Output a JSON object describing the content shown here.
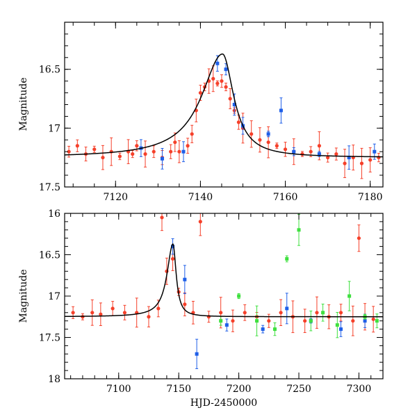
{
  "colors": {
    "red": "#f5402a",
    "blue": "#1f5fe8",
    "green": "#3fe03f",
    "model": "#000000"
  },
  "chart_data": [
    {
      "type": "scatter",
      "panel": "top",
      "xlabel": "",
      "ylabel": "Magnitude",
      "xlim": [
        7108,
        7183
      ],
      "ylim": [
        17.5,
        16.1
      ],
      "y_inverted": true,
      "xticks": [
        7120,
        7140,
        7160,
        7180
      ],
      "xtick_labels": [
        "7120",
        "7140",
        "7160",
        "7180"
      ],
      "yticks": [
        16.5,
        17,
        17.5
      ],
      "ytick_labels": [
        "16.5",
        "17",
        "17.5"
      ],
      "model": {
        "baseline": 17.25,
        "peak_x": 7145.2,
        "peak_mag": 16.37,
        "rise_width": 6.0,
        "decay_width": 3.2
      },
      "series": [
        {
          "name": "red",
          "color_key": "red",
          "points": [
            [
              7109,
              17.2
            ],
            [
              7111,
              17.15
            ],
            [
              7113,
              17.22
            ],
            [
              7115,
              17.18
            ],
            [
              7117,
              17.25
            ],
            [
              7119,
              17.2
            ],
            [
              7121,
              17.24
            ],
            [
              7123,
              17.2
            ],
            [
              7124,
              17.22
            ],
            [
              7125,
              17.15
            ],
            [
              7127,
              17.22
            ],
            [
              7129,
              17.2
            ],
            [
              7131,
              17.25
            ],
            [
              7133,
              17.2
            ],
            [
              7134,
              17.12
            ],
            [
              7135,
              17.2
            ],
            [
              7137,
              17.15
            ],
            [
              7138,
              17.05
            ],
            [
              7139,
              16.85
            ],
            [
              7140,
              16.7
            ],
            [
              7141,
              16.65
            ],
            [
              7142,
              16.6
            ],
            [
              7143,
              16.58
            ],
            [
              7144,
              16.62
            ],
            [
              7145,
              16.6
            ],
            [
              7146,
              16.65
            ],
            [
              7147,
              16.75
            ],
            [
              7148,
              16.85
            ],
            [
              7149,
              16.95
            ],
            [
              7150,
              17.0
            ],
            [
              7152,
              17.05
            ],
            [
              7154,
              17.1
            ],
            [
              7156,
              17.12
            ],
            [
              7158,
              17.15
            ],
            [
              7160,
              17.18
            ],
            [
              7162,
              17.2
            ],
            [
              7164,
              17.22
            ],
            [
              7166,
              17.2
            ],
            [
              7168,
              17.15
            ],
            [
              7170,
              17.25
            ],
            [
              7172,
              17.22
            ],
            [
              7174,
              17.3
            ],
            [
              7176,
              17.25
            ],
            [
              7178,
              17.3
            ],
            [
              7180,
              17.27
            ],
            [
              7182,
              17.25
            ]
          ]
        },
        {
          "name": "blue",
          "color_key": "blue",
          "points": [
            [
              7126,
              17.17
            ],
            [
              7131,
              17.26
            ],
            [
              7136,
              17.2
            ],
            [
              7144,
              16.45
            ],
            [
              7146,
              16.5
            ],
            [
              7148,
              16.8
            ],
            [
              7150,
              16.98
            ],
            [
              7156,
              17.05
            ],
            [
              7159,
              16.85
            ],
            [
              7162,
              17.2
            ],
            [
              7168,
              17.22
            ],
            [
              7175,
              17.25
            ],
            [
              7181,
              17.2
            ]
          ]
        }
      ]
    },
    {
      "type": "scatter",
      "panel": "bottom",
      "xlabel": "HJD-2450000",
      "ylabel": "Magnitude",
      "xlim": [
        7055,
        7320
      ],
      "ylim": [
        18,
        16
      ],
      "y_inverted": true,
      "xticks": [
        7100,
        7150,
        7200,
        7250,
        7300
      ],
      "xtick_labels": [
        "7100",
        "7150",
        "7200",
        "7250",
        "7300"
      ],
      "yticks": [
        16,
        16.5,
        17,
        17.5,
        18
      ],
      "ytick_labels": [
        "16",
        "16.5",
        "17",
        "17.5",
        "18"
      ],
      "model": {
        "baseline": 17.25,
        "peak_x": 7145.2,
        "peak_mag": 16.37,
        "rise_width": 6.0,
        "decay_width": 3.2
      },
      "series": [
        {
          "name": "red",
          "color_key": "red",
          "points": [
            [
              7062,
              17.2
            ],
            [
              7070,
              17.25
            ],
            [
              7078,
              17.2
            ],
            [
              7085,
              17.22
            ],
            [
              7095,
              17.15
            ],
            [
              7105,
              17.2
            ],
            [
              7115,
              17.2
            ],
            [
              7125,
              17.25
            ],
            [
              7133,
              17.15
            ],
            [
              7136,
              16.05
            ],
            [
              7140,
              16.7
            ],
            [
              7145,
              16.55
            ],
            [
              7150,
              16.95
            ],
            [
              7155,
              17.1
            ],
            [
              7162,
              17.2
            ],
            [
              7168,
              16.1
            ],
            [
              7175,
              17.25
            ],
            [
              7185,
              17.2
            ],
            [
              7195,
              17.3
            ],
            [
              7205,
              17.2
            ],
            [
              7215,
              17.25
            ],
            [
              7225,
              17.3
            ],
            [
              7235,
              17.2
            ],
            [
              7245,
              17.25
            ],
            [
              7255,
              17.3
            ],
            [
              7265,
              17.2
            ],
            [
              7275,
              17.25
            ],
            [
              7285,
              17.2
            ],
            [
              7295,
              17.3
            ],
            [
              7300,
              16.3
            ],
            [
              7305,
              17.25
            ],
            [
              7312,
              17.28
            ]
          ]
        },
        {
          "name": "blue",
          "color_key": "blue",
          "points": [
            [
              7145,
              16.4
            ],
            [
              7155,
              16.8
            ],
            [
              7165,
              17.7
            ],
            [
              7190,
              17.35
            ],
            [
              7220,
              17.4
            ],
            [
              7240,
              17.15
            ],
            [
              7260,
              17.3
            ],
            [
              7285,
              17.4
            ],
            [
              7305,
              17.3
            ]
          ]
        },
        {
          "name": "green",
          "color_key": "green",
          "points": [
            [
              7185,
              17.3
            ],
            [
              7200,
              17.0
            ],
            [
              7215,
              17.3
            ],
            [
              7230,
              17.4
            ],
            [
              7240,
              16.55
            ],
            [
              7250,
              16.2
            ],
            [
              7260,
              17.3
            ],
            [
              7270,
              17.2
            ],
            [
              7282,
              17.35
            ],
            [
              7292,
              17.0
            ],
            [
              7305,
              17.25
            ],
            [
              7315,
              17.3
            ]
          ]
        }
      ]
    }
  ]
}
